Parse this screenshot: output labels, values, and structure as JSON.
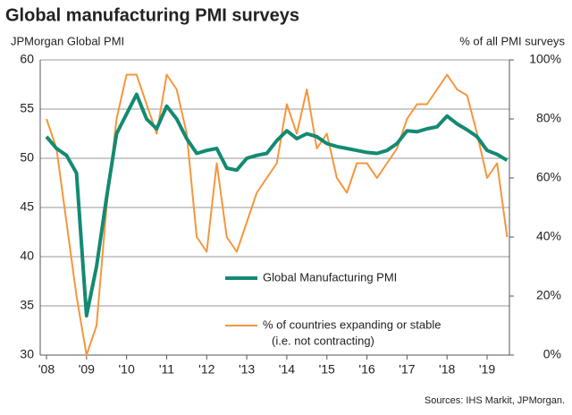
{
  "chart_data": {
    "type": "line",
    "title": "Global manufacturing PMI surveys",
    "y_label": "JPMorgan Global PMI",
    "y2_label": "% of all PMI surveys",
    "source": "Sources: IHS Markit, JPMorgan.",
    "legend_note": "(i.e. not contracting)",
    "x": [
      2008,
      2008.25,
      2008.5,
      2008.75,
      2009,
      2009.25,
      2009.5,
      2009.75,
      2010,
      2010.25,
      2010.5,
      2010.75,
      2011,
      2011.25,
      2011.5,
      2011.75,
      2012,
      2012.25,
      2012.5,
      2012.75,
      2013,
      2013.25,
      2013.5,
      2013.75,
      2014,
      2014.25,
      2014.5,
      2014.75,
      2015,
      2015.25,
      2015.5,
      2015.75,
      2016,
      2016.25,
      2016.5,
      2016.75,
      2017,
      2017.25,
      2017.5,
      2017.75,
      2018,
      2018.25,
      2018.5,
      2018.75,
      2019,
      2019.25,
      2019.5
    ],
    "series": [
      {
        "name": "Global Manufacturing PMI",
        "color": "#138a72",
        "width": 4,
        "values": [
          52.2,
          51,
          50.3,
          48.5,
          34,
          39,
          46,
          52.5,
          54.5,
          56.5,
          54,
          53,
          55.3,
          54,
          52,
          50.5,
          50.8,
          51,
          49,
          48.8,
          50,
          50.3,
          50.5,
          51.8,
          52.8,
          52,
          52.5,
          52.2,
          51.5,
          51.2,
          51,
          50.8,
          50.6,
          50.5,
          50.8,
          51.5,
          52.8,
          52.7,
          53,
          53.2,
          54.3,
          53.5,
          52.9,
          52.2,
          50.8,
          50.4,
          49.8
        ]
      },
      {
        "name": "% of countries expanding or stable",
        "color": "#f5963c",
        "width": 2,
        "axis": "y2",
        "values": [
          80,
          70,
          45,
          20,
          0,
          10,
          50,
          80,
          95,
          95,
          85,
          75,
          95,
          90,
          75,
          40,
          35,
          65,
          40,
          35,
          45,
          55,
          60,
          65,
          85,
          75,
          90,
          70,
          75,
          60,
          55,
          65,
          65,
          60,
          65,
          70,
          80,
          85,
          85,
          90,
          95,
          90,
          88,
          75,
          60,
          65,
          40
        ]
      }
    ],
    "xlim": [
      2008,
      2019.6
    ],
    "xticks": [
      {
        "value": 2008,
        "label": "'08"
      },
      {
        "value": 2009,
        "label": "'09"
      },
      {
        "value": 2010,
        "label": "'10"
      },
      {
        "value": 2011,
        "label": "'11"
      },
      {
        "value": 2012,
        "label": "'12"
      },
      {
        "value": 2013,
        "label": "'13"
      },
      {
        "value": 2014,
        "label": "'14"
      },
      {
        "value": 2015,
        "label": "'15"
      },
      {
        "value": 2016,
        "label": "'16"
      },
      {
        "value": 2017,
        "label": "'17"
      },
      {
        "value": 2018,
        "label": "'18"
      },
      {
        "value": 2019,
        "label": "'19"
      }
    ],
    "ylim": [
      30,
      60
    ],
    "yticks": [
      30,
      35,
      40,
      45,
      50,
      55,
      60
    ],
    "y2lim": [
      0,
      100
    ],
    "y2ticks": [
      {
        "value": 0,
        "label": "0%"
      },
      {
        "value": 20,
        "label": "20%"
      },
      {
        "value": 40,
        "label": "40%"
      },
      {
        "value": 60,
        "label": "60%"
      },
      {
        "value": 80,
        "label": "80%"
      },
      {
        "value": 100,
        "label": "100%"
      }
    ],
    "grid": true
  }
}
